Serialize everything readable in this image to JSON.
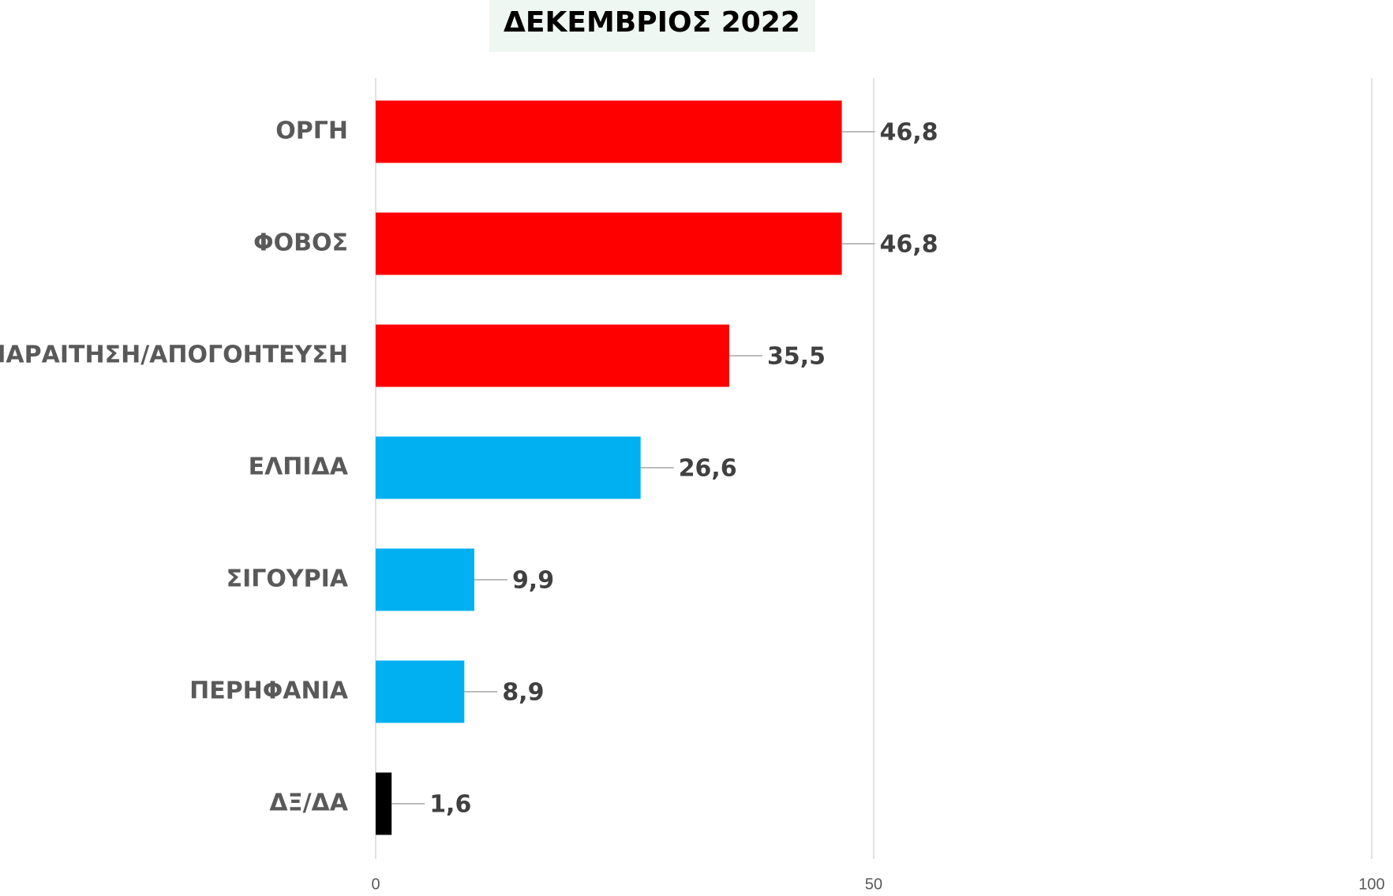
{
  "chart_data": {
    "type": "hbar",
    "title": "ΔΕΚΕΜΒΡΙΟΣ 2022",
    "categories": [
      "ΟΡΓΗ",
      "ΦΟΒΟΣ",
      "ΠΑΡΑΙΤΗΣΗ/ΑΠΟΓΟΗΤΕΥΣΗ",
      "ΕΛΠΙΔΑ",
      "ΣΙΓΟΥΡΙΑ",
      "ΠΕΡΗΦΑΝΙΑ",
      "ΔΞ/ΔΑ"
    ],
    "values": [
      46.8,
      46.8,
      35.5,
      26.6,
      9.9,
      8.9,
      1.6
    ],
    "value_labels": [
      "46,8",
      "46,8",
      "35,5",
      "26,6",
      "9,9",
      "8,9",
      "1,6"
    ],
    "colors": [
      "#ff0000",
      "#ff0000",
      "#ff0000",
      "#00b0f0",
      "#00b0f0",
      "#00b0f0",
      "#000000"
    ],
    "xlim": [
      0,
      100
    ],
    "xticks": [
      0,
      50,
      100
    ],
    "grid": true
  }
}
